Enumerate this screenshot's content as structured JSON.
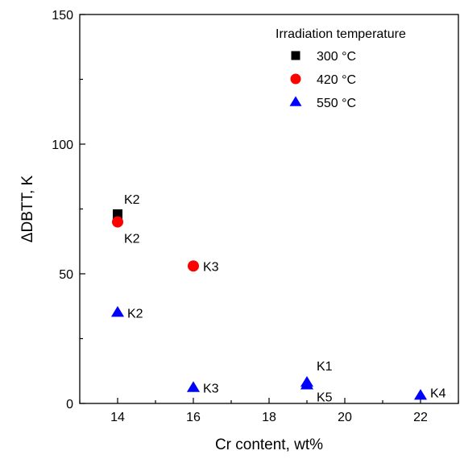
{
  "chart_data": {
    "type": "scatter",
    "xlabel": "Cr content, wt%",
    "ylabel": "ΔDBTT, K",
    "xlim": [
      13,
      23
    ],
    "ylim": [
      0,
      150
    ],
    "x_ticks": [
      14,
      16,
      18,
      20,
      22
    ],
    "y_ticks": [
      0,
      50,
      100,
      150
    ],
    "grid": false,
    "legend": {
      "title": "Irradiation temperature",
      "position": "top-right",
      "entries": [
        {
          "name": "300 °C",
          "marker": "square",
          "color": "#000000"
        },
        {
          "name": "420 °C",
          "marker": "circle",
          "color": "#ff0000"
        },
        {
          "name": "550 °C",
          "marker": "triangle",
          "color": "#0000ff"
        }
      ]
    },
    "series": [
      {
        "name": "300 °C",
        "marker": "square",
        "color": "#000000",
        "points": [
          {
            "x": 14,
            "y": 73,
            "label": "K2"
          }
        ]
      },
      {
        "name": "420 °C",
        "marker": "circle",
        "color": "#ff0000",
        "points": [
          {
            "x": 14,
            "y": 70,
            "label": "K2"
          },
          {
            "x": 16,
            "y": 53,
            "label": "K3"
          }
        ]
      },
      {
        "name": "550 °C",
        "marker": "triangle",
        "color": "#0000ff",
        "points": [
          {
            "x": 14,
            "y": 35,
            "label": "K2"
          },
          {
            "x": 16,
            "y": 6,
            "label": "K3"
          },
          {
            "x": 19,
            "y": 8,
            "label": "K1"
          },
          {
            "x": 19,
            "y": 7,
            "label": "K5"
          },
          {
            "x": 22,
            "y": 3,
            "label": "K4"
          }
        ]
      }
    ]
  }
}
